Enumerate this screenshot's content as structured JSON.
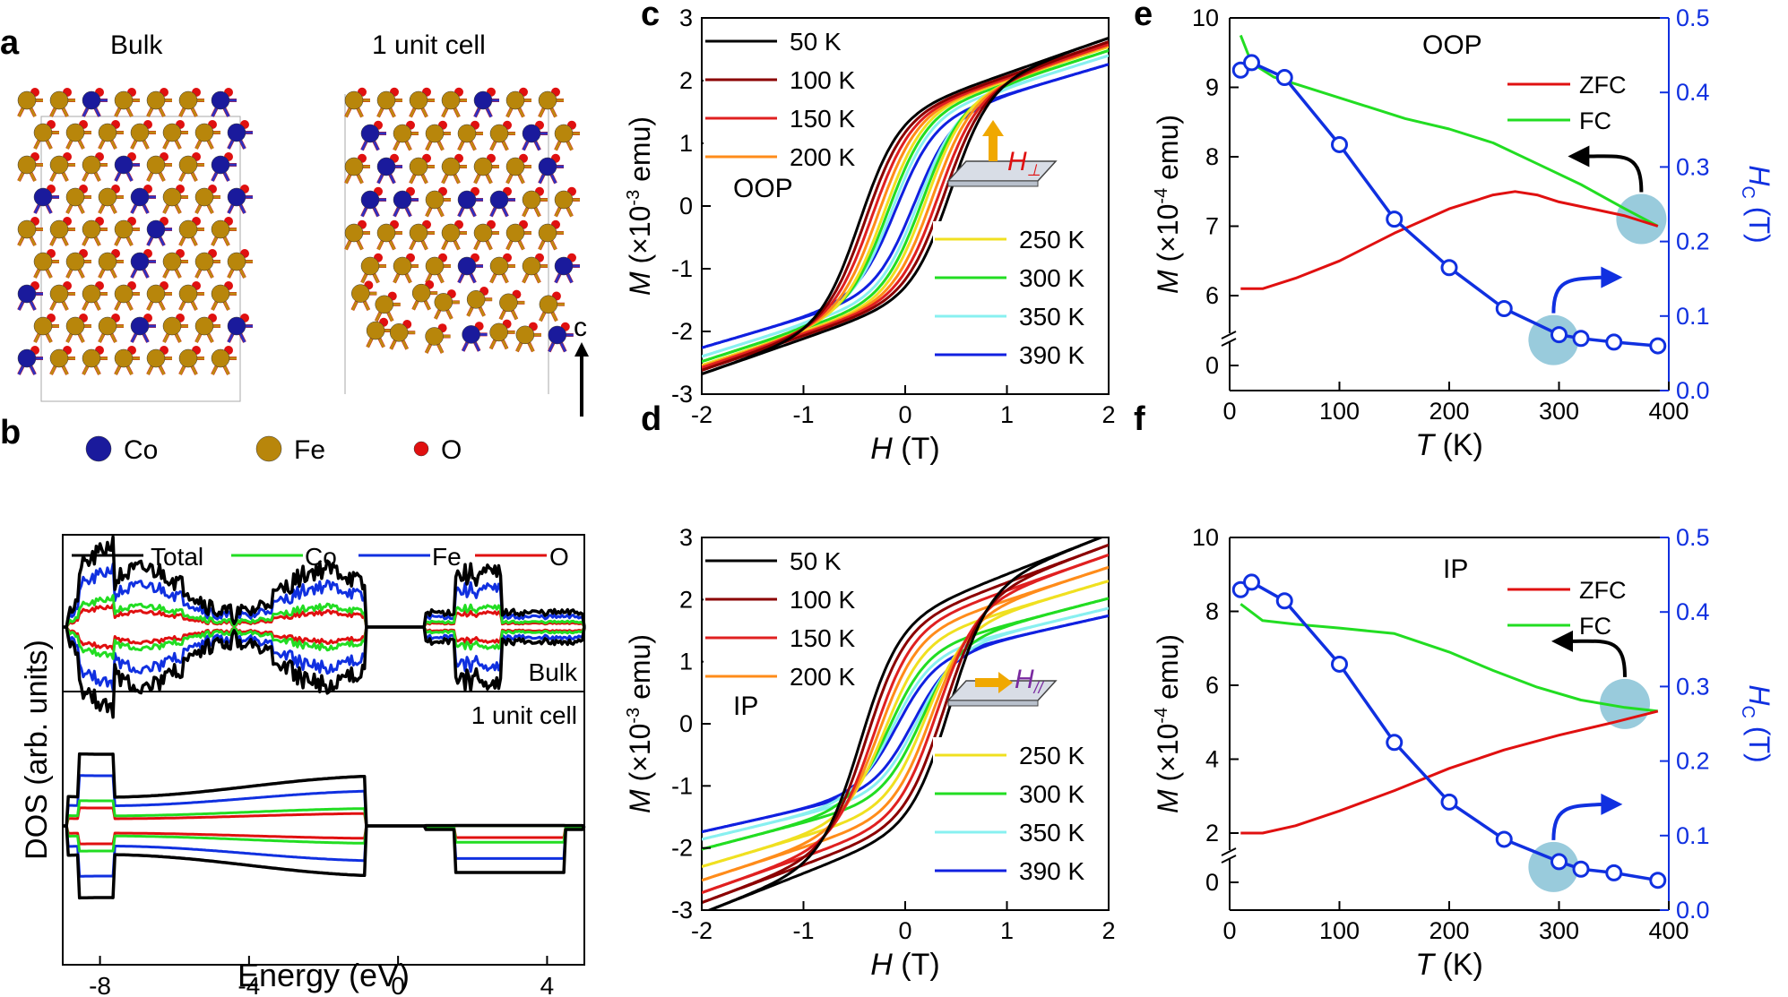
{
  "panels": {
    "a": {
      "letter": "a",
      "label_bulk": "Bulk",
      "label_uc": "1 unit cell",
      "axis_label": "c",
      "legend": [
        {
          "label": "Co",
          "color": "#1a1a9c"
        },
        {
          "label": "Fe",
          "color": "#b8860b"
        },
        {
          "label": "O",
          "color": "#e01010"
        }
      ]
    },
    "b": {
      "letter": "b"
    },
    "c": {
      "letter": "c"
    },
    "d": {
      "letter": "d"
    },
    "e": {
      "letter": "e"
    },
    "f": {
      "letter": "f"
    }
  },
  "colors": {
    "50K": "#000000",
    "100K": "#8b0000",
    "150K": "#e02020",
    "200K": "#ff8c1a",
    "250K": "#f0e020",
    "300K": "#22dd22",
    "350K": "#88f0f0",
    "390K": "#1020e0",
    "Total": "#000000",
    "Co": "#22dd22",
    "Fe": "#1030e0",
    "O": "#e01010",
    "ZFC": "#e01010",
    "FC": "#22dd22",
    "Hc": "#1030e0",
    "marker_fill": "#8ec5d8"
  },
  "chart_data": [
    {
      "id": "b",
      "type": "line",
      "title": "",
      "xlabel": "Energy (eV)",
      "ylabel": "DOS (arb. units)",
      "xlim": [
        -9,
        5
      ],
      "xticks": [
        "-8",
        "-4",
        "0",
        "4"
      ],
      "xtick_values": [
        -8,
        -4,
        0,
        4
      ],
      "legend": [
        "Total",
        "Co",
        "Fe",
        "O"
      ],
      "subpanels": [
        "Bulk",
        "1 unit cell"
      ],
      "note": "spin-resolved DOS; upper half = spin up, lower = spin down (qualitative)"
    },
    {
      "id": "c",
      "type": "line",
      "xlabel_var": "H",
      "xlabel_unit": " (T)",
      "ylabel_var": "M",
      "ylabel_unit": " (×10",
      "ylabel_exp": "-3",
      "ylabel_tail": " emu)",
      "xlim": [
        -2,
        2
      ],
      "ylim": [
        -3,
        3
      ],
      "xticks": [
        "-2",
        "-1",
        "0",
        "1",
        "2"
      ],
      "yticks": [
        "-3",
        "-2",
        "-1",
        "0",
        "1",
        "2",
        "3"
      ],
      "annotation": "OOP",
      "inset_label": "H",
      "inset_sub": "⊥",
      "series": [
        {
          "name": "50 K",
          "key": "50K",
          "Ms": 2.68,
          "Hc": 0.45
        },
        {
          "name": "100 K",
          "key": "100K",
          "Ms": 2.62,
          "Hc": 0.39
        },
        {
          "name": "150 K",
          "key": "150K",
          "Ms": 2.58,
          "Hc": 0.33
        },
        {
          "name": "200 K",
          "key": "200K",
          "Ms": 2.56,
          "Hc": 0.27
        },
        {
          "name": "250 K",
          "key": "250K",
          "Ms": 2.54,
          "Hc": 0.21
        },
        {
          "name": "300 K",
          "key": "300K",
          "Ms": 2.48,
          "Hc": 0.17
        },
        {
          "name": "350 K",
          "key": "350K",
          "Ms": 2.4,
          "Hc": 0.13
        },
        {
          "name": "390 K",
          "key": "390K",
          "Ms": 2.26,
          "Hc": 0.09
        }
      ]
    },
    {
      "id": "d",
      "type": "line",
      "xlabel_var": "H",
      "xlabel_unit": " (T)",
      "ylabel_var": "M",
      "ylabel_unit": " (×10",
      "ylabel_exp": "-3",
      "ylabel_tail": " emu)",
      "xlim": [
        -2,
        2
      ],
      "ylim": [
        -3,
        3
      ],
      "xticks": [
        "-2",
        "-1",
        "0",
        "1",
        "2"
      ],
      "yticks": [
        "-3",
        "-2",
        "-1",
        "0",
        "1",
        "2",
        "3"
      ],
      "annotation": "IP",
      "inset_label": "H",
      "inset_sub": "//",
      "series": [
        {
          "name": "50 K",
          "key": "50K",
          "Ms": 3.05,
          "Hc": 0.44
        },
        {
          "name": "100 K",
          "key": "100K",
          "Ms": 2.88,
          "Hc": 0.38
        },
        {
          "name": "150 K",
          "key": "150K",
          "Ms": 2.72,
          "Hc": 0.31
        },
        {
          "name": "200 K",
          "key": "200K",
          "Ms": 2.52,
          "Hc": 0.26
        },
        {
          "name": "250 K",
          "key": "250K",
          "Ms": 2.3,
          "Hc": 0.2
        },
        {
          "name": "300 K",
          "key": "300K",
          "Ms": 2.02,
          "Hc": 0.16
        },
        {
          "name": "350 K",
          "key": "350K",
          "Ms": 1.86,
          "Hc": 0.12
        },
        {
          "name": "390 K",
          "key": "390K",
          "Ms": 1.74,
          "Hc": 0.08
        }
      ]
    },
    {
      "id": "e",
      "type": "line",
      "xlabel_var": "T",
      "xlabel_unit": " (K)",
      "ylabel_var": "M",
      "ylabel_unit": " (×10",
      "ylabel_exp": "-4",
      "ylabel_tail": " emu)",
      "y2label_var": "H",
      "y2label_sub": "C",
      "y2label_unit": " (T)",
      "xlim": [
        0,
        400
      ],
      "xticks": [
        "0",
        "100",
        "200",
        "300",
        "400"
      ],
      "yticks_left": [
        "0",
        "6",
        "7",
        "8",
        "9",
        "10"
      ],
      "yticks_right": [
        "0.0",
        "0.1",
        "0.2",
        "0.3",
        "0.4",
        "0.5"
      ],
      "annotation": "OOP",
      "legend": [
        "ZFC",
        "FC"
      ],
      "ZFC": {
        "T": [
          10,
          30,
          60,
          100,
          150,
          200,
          240,
          260,
          280,
          300,
          330,
          360,
          390
        ],
        "M": [
          6.1,
          6.1,
          6.25,
          6.5,
          6.9,
          7.25,
          7.45,
          7.5,
          7.45,
          7.35,
          7.25,
          7.15,
          7.0
        ]
      },
      "FC": {
        "T": [
          10,
          20,
          40,
          80,
          120,
          160,
          200,
          240,
          280,
          320,
          360,
          390
        ],
        "M": [
          9.75,
          9.35,
          9.15,
          8.95,
          8.75,
          8.55,
          8.4,
          8.2,
          7.9,
          7.6,
          7.25,
          7.0
        ]
      },
      "Hc": {
        "T": [
          10,
          20,
          50,
          100,
          150,
          200,
          250,
          300,
          320,
          350,
          390
        ],
        "Hc": [
          0.43,
          0.44,
          0.42,
          0.33,
          0.23,
          0.165,
          0.11,
          0.075,
          0.07,
          0.065,
          0.06
        ]
      }
    },
    {
      "id": "f",
      "type": "line",
      "xlabel_var": "T",
      "xlabel_unit": " (K)",
      "ylabel_var": "M",
      "ylabel_unit": " (×10",
      "ylabel_exp": "-4",
      "ylabel_tail": " emu)",
      "y2label_var": "H",
      "y2label_sub": "C",
      "y2label_unit": " (T)",
      "xlim": [
        0,
        400
      ],
      "xticks": [
        "0",
        "100",
        "200",
        "300",
        "400"
      ],
      "yticks_left": [
        "0",
        "2",
        "4",
        "6",
        "8",
        "10"
      ],
      "yticks_right": [
        "0.0",
        "0.1",
        "0.2",
        "0.3",
        "0.4",
        "0.5"
      ],
      "annotation": "IP",
      "legend": [
        "ZFC",
        "FC"
      ],
      "ZFC": {
        "T": [
          10,
          30,
          60,
          100,
          150,
          200,
          250,
          300,
          350,
          390
        ],
        "M": [
          2.0,
          2.0,
          2.2,
          2.6,
          3.15,
          3.75,
          4.25,
          4.65,
          5.0,
          5.3
        ]
      },
      "FC": {
        "T": [
          10,
          30,
          60,
          100,
          150,
          200,
          240,
          280,
          320,
          360,
          390
        ],
        "M": [
          8.2,
          7.75,
          7.65,
          7.55,
          7.4,
          6.9,
          6.4,
          5.95,
          5.6,
          5.4,
          5.3
        ]
      },
      "Hc": {
        "T": [
          10,
          20,
          50,
          100,
          150,
          200,
          250,
          300,
          320,
          350,
          390
        ],
        "Hc": [
          0.43,
          0.44,
          0.415,
          0.33,
          0.225,
          0.145,
          0.095,
          0.065,
          0.055,
          0.05,
          0.04
        ]
      }
    }
  ]
}
